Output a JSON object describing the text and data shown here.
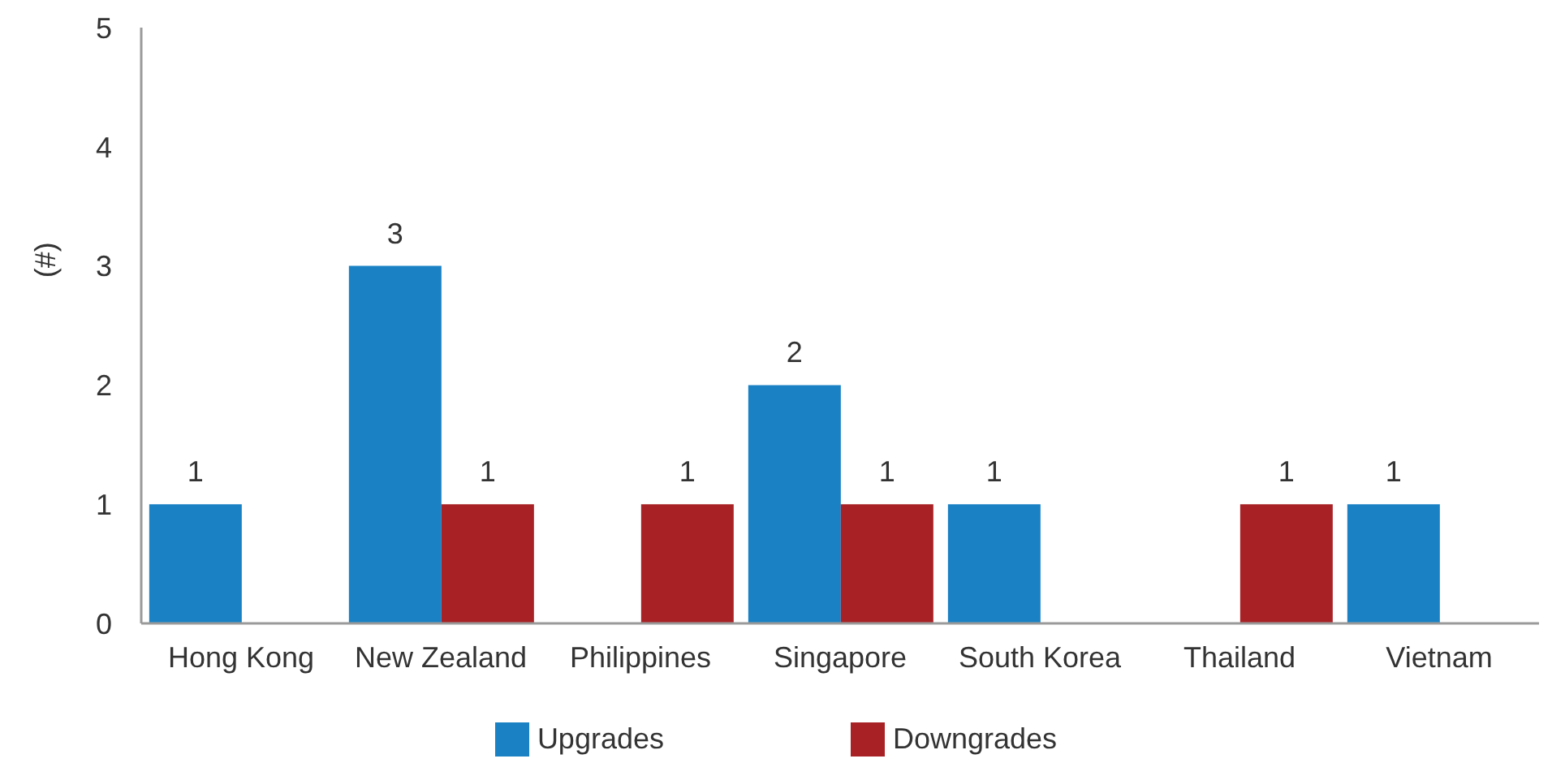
{
  "chart_data": {
    "type": "bar",
    "ylabel": "(#)",
    "categories": [
      "Hong Kong",
      "New Zealand",
      "Philippines",
      "Singapore",
      "South Korea",
      "Thailand",
      "Vietnam"
    ],
    "series": [
      {
        "name": "Upgrades",
        "color": "#1a82c4",
        "values": [
          1,
          3,
          null,
          2,
          1,
          null,
          1
        ]
      },
      {
        "name": "Downgrades",
        "color": "#a82225",
        "values": [
          null,
          1,
          1,
          1,
          null,
          1,
          null
        ]
      }
    ],
    "ylim": [
      0,
      5
    ],
    "yticks": [
      0,
      1,
      2,
      3,
      4,
      5
    ],
    "data_labels": true,
    "legend": "bottom"
  }
}
